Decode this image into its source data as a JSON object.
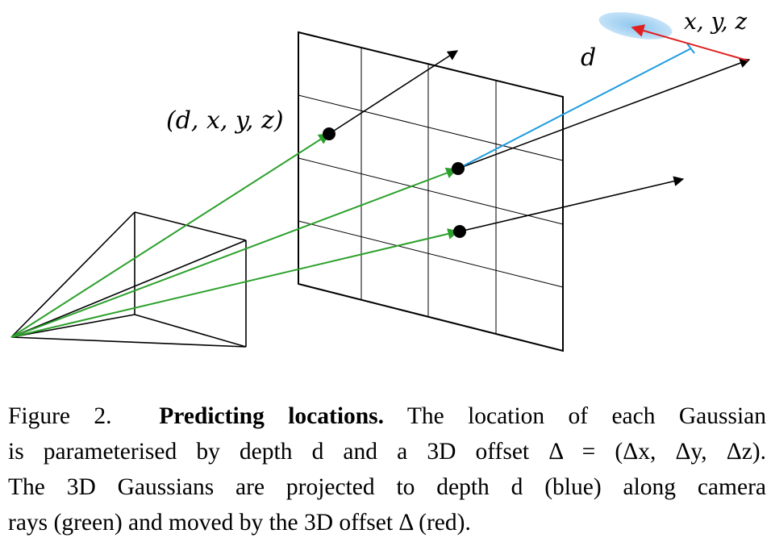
{
  "figure": {
    "labels": {
      "point_label": "(d, x, y, z)",
      "depth_label": "d",
      "offset_label": "x, y, z"
    },
    "colors": {
      "camera_ray": "#2ca02c",
      "depth": "#1e9be0",
      "offset": "#e02020",
      "gaussian": "#a8d4f2",
      "frame": "#000000"
    }
  },
  "caption": {
    "figure_number": "Figure 2.",
    "title": "Predicting locations.",
    "line1_rest": "The location of each Gaussian",
    "line2": "is parameterised by depth d and a 3D offset Δ = (Δx, Δy, Δz).",
    "line3": "The 3D Gaussians are projected to depth d (blue) along camera",
    "line4": "rays (green) and moved by the 3D offset Δ (red)."
  }
}
